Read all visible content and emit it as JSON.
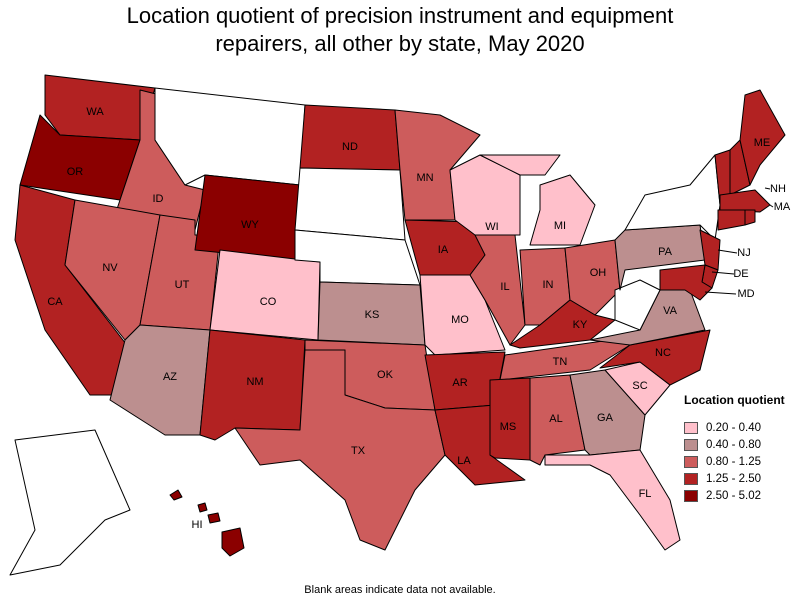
{
  "title_line1": "Location quotient of precision instrument and equipment",
  "title_line2": "repairers, all other by state, May 2020",
  "legend": {
    "title": "Location quotient",
    "items": [
      {
        "label": "0.20 - 0.40",
        "color": "#ffc0cb"
      },
      {
        "label": "0.40 - 0.80",
        "color": "#bc8f8f"
      },
      {
        "label": "0.80 - 1.25",
        "color": "#cd5c5c"
      },
      {
        "label": "1.25 - 2.50",
        "color": "#b22222"
      },
      {
        "label": "2.50 - 5.02",
        "color": "#8b0000"
      }
    ]
  },
  "footnote": "Blank areas indicate data not available.",
  "states": [
    {
      "abbr": "WA",
      "cls": 4
    },
    {
      "abbr": "OR",
      "cls": 5
    },
    {
      "abbr": "CA",
      "cls": 4
    },
    {
      "abbr": "ID",
      "cls": 3
    },
    {
      "abbr": "NV",
      "cls": 3
    },
    {
      "abbr": "UT",
      "cls": 3
    },
    {
      "abbr": "AZ",
      "cls": 2
    },
    {
      "abbr": "WY",
      "cls": 5
    },
    {
      "abbr": "CO",
      "cls": 1
    },
    {
      "abbr": "NM",
      "cls": 4
    },
    {
      "abbr": "ND",
      "cls": 4
    },
    {
      "abbr": "KS",
      "cls": 2
    },
    {
      "abbr": "OK",
      "cls": 3
    },
    {
      "abbr": "TX",
      "cls": 3
    },
    {
      "abbr": "MN",
      "cls": 3
    },
    {
      "abbr": "IA",
      "cls": 4
    },
    {
      "abbr": "MO",
      "cls": 1
    },
    {
      "abbr": "AR",
      "cls": 4
    },
    {
      "abbr": "LA",
      "cls": 4
    },
    {
      "abbr": "WI",
      "cls": 1
    },
    {
      "abbr": "IL",
      "cls": 3
    },
    {
      "abbr": "MI",
      "cls": 1
    },
    {
      "abbr": "IN",
      "cls": 3
    },
    {
      "abbr": "OH",
      "cls": 3
    },
    {
      "abbr": "KY",
      "cls": 4
    },
    {
      "abbr": "TN",
      "cls": 3
    },
    {
      "abbr": "MS",
      "cls": 4
    },
    {
      "abbr": "AL",
      "cls": 3
    },
    {
      "abbr": "GA",
      "cls": 2
    },
    {
      "abbr": "FL",
      "cls": 1
    },
    {
      "abbr": "SC",
      "cls": 1
    },
    {
      "abbr": "NC",
      "cls": 4
    },
    {
      "abbr": "VA",
      "cls": 2
    },
    {
      "abbr": "PA",
      "cls": 2
    },
    {
      "abbr": "NJ",
      "cls": 4
    },
    {
      "abbr": "DE",
      "cls": 4
    },
    {
      "abbr": "MD",
      "cls": 4
    },
    {
      "abbr": "ME",
      "cls": 4
    },
    {
      "abbr": "NH",
      "cls": 4
    },
    {
      "abbr": "MA",
      "cls": 4
    },
    {
      "abbr": "HI",
      "cls": 5
    },
    {
      "abbr": "VT",
      "cls": 4
    },
    {
      "abbr": "RI",
      "cls": 4
    },
    {
      "abbr": "CT",
      "cls": 4
    },
    {
      "abbr": "WV",
      "cls": 0
    },
    {
      "abbr": "MT",
      "cls": 0
    },
    {
      "abbr": "SD",
      "cls": 0
    },
    {
      "abbr": "NE",
      "cls": 0
    },
    {
      "abbr": "NY",
      "cls": 0
    },
    {
      "abbr": "AK",
      "cls": 0
    }
  ],
  "labeled_states": [
    "WA",
    "OR",
    "CA",
    "ID",
    "NV",
    "UT",
    "AZ",
    "WY",
    "CO",
    "NM",
    "ND",
    "KS",
    "OK",
    "TX",
    "MN",
    "IA",
    "MO",
    "AR",
    "LA",
    "WI",
    "IL",
    "MI",
    "IN",
    "OH",
    "KY",
    "TN",
    "MS",
    "AL",
    "GA",
    "FL",
    "SC",
    "NC",
    "VA",
    "PA",
    "NJ",
    "DE",
    "MD",
    "ME",
    "NH",
    "MA",
    "HI"
  ]
}
